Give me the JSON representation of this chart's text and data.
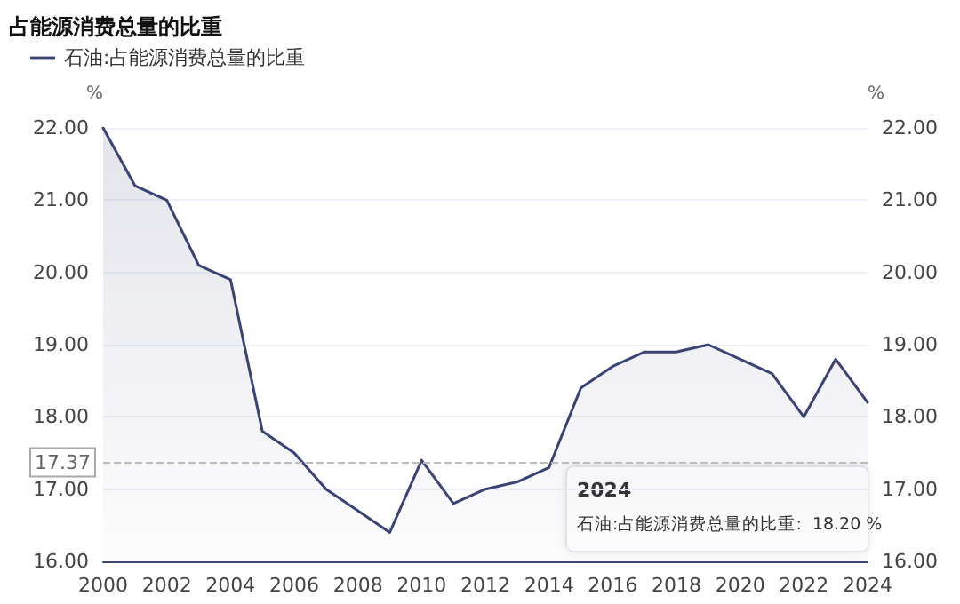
{
  "chart_data": {
    "type": "area",
    "title": "占能源消费总量的比重",
    "ylabel": "%",
    "y2label": "%",
    "categories": [
      "2000",
      null,
      "2002",
      null,
      "2004",
      null,
      "2006",
      null,
      "2008",
      null,
      "2010",
      null,
      "2012",
      null,
      "2014",
      null,
      "2016",
      null,
      "2018",
      null,
      "2020",
      null,
      "2022",
      null,
      "2024"
    ],
    "series": [
      {
        "name": "石油:占能源消费总量的比重",
        "color": "#3b4374",
        "values": [
          22.0,
          21.2,
          21.0,
          20.1,
          19.9,
          17.8,
          17.5,
          17.0,
          16.7,
          16.4,
          17.4,
          16.8,
          17.0,
          17.1,
          17.3,
          18.4,
          18.7,
          18.9,
          18.9,
          19.0,
          18.8,
          18.6,
          18.0,
          18.8,
          18.2
        ]
      }
    ],
    "ylim": [
      16,
      22
    ],
    "yticks": [
      {
        "value": 16,
        "label": "16.00"
      },
      {
        "value": 17,
        "label": "17.00"
      },
      {
        "value": 18,
        "label": "18.00"
      },
      {
        "value": 19,
        "label": "19.00"
      },
      {
        "value": 20,
        "label": "20.00"
      },
      {
        "value": 21,
        "label": "21.00"
      },
      {
        "value": 22,
        "label": "22.00"
      }
    ],
    "y2lim": [
      16,
      22
    ],
    "y2ticks": [
      {
        "value": 16,
        "label": "16.00"
      },
      {
        "value": 17,
        "label": "17.00"
      },
      {
        "value": 18,
        "label": "18.00"
      },
      {
        "value": 19,
        "label": "19.00"
      },
      {
        "value": 20,
        "label": "20.00"
      },
      {
        "value": 21,
        "label": "21.00"
      },
      {
        "value": 22,
        "label": "22.00"
      }
    ],
    "ref_lines": [
      {
        "axis": "y",
        "value": 17.37,
        "label": "17.37",
        "color": "#bbbbbb",
        "line_style": "dashed"
      }
    ],
    "annotations": [
      "2024",
      "石油:占能源消费总量的比重:  18.20 %"
    ],
    "grid": "y",
    "legend": "top left",
    "marker": "none",
    "line_style": "solid"
  }
}
